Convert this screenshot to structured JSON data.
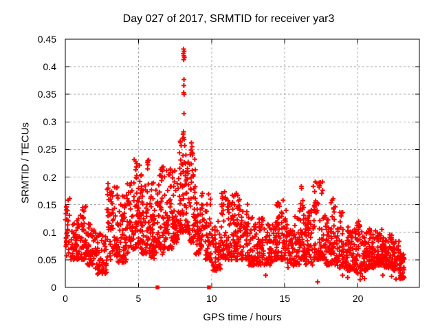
{
  "chart_data": {
    "type": "scatter",
    "title": "Day 027 of 2017, SRMTID for receiver yar3",
    "xlabel": "GPS time / hours",
    "ylabel": "SRMTID / TECUs",
    "xlim": [
      0,
      24.2
    ],
    "ylim": [
      0,
      0.45
    ],
    "xticks": [
      0,
      5,
      10,
      15,
      20
    ],
    "xtick_labels": [
      "0",
      "5",
      "10",
      "15",
      "20"
    ],
    "yticks": [
      0,
      0.05,
      0.1,
      0.15,
      0.2,
      0.25,
      0.3,
      0.35,
      0.4,
      0.45
    ],
    "ytick_labels": [
      "0",
      "0.05",
      "0.1",
      "0.15",
      "0.2",
      "0.25",
      "0.3",
      "0.35",
      "0.4",
      "0.45"
    ],
    "grid": true,
    "legend": "none",
    "marker": {
      "symbol": "+",
      "color": "#ff0000",
      "size": 7,
      "stroke_width": 2
    },
    "zero_markers": {
      "symbol": "filled-square",
      "color": "#ff0000",
      "size": 5.5,
      "points": [
        [
          6.3,
          0
        ],
        [
          9.82,
          0
        ]
      ]
    },
    "spike_points": [
      [
        8.08,
        0.432
      ],
      [
        8.12,
        0.428
      ],
      [
        8.06,
        0.424
      ],
      [
        8.1,
        0.42
      ],
      [
        8.14,
        0.417
      ],
      [
        8.09,
        0.413
      ],
      [
        8.11,
        0.377
      ],
      [
        8.1,
        0.366
      ],
      [
        8.09,
        0.353
      ],
      [
        8.12,
        0.35
      ],
      [
        8.11,
        0.315
      ],
      [
        8.08,
        0.282
      ],
      [
        8.12,
        0.268
      ],
      [
        8.05,
        0.278
      ],
      [
        8.02,
        0.27
      ],
      [
        8.62,
        0.262
      ],
      [
        8.66,
        0.255
      ],
      [
        8.59,
        0.249
      ],
      [
        8.64,
        0.244
      ],
      [
        8.7,
        0.24
      ]
    ],
    "low_points": [
      [
        2.2,
        0.024
      ],
      [
        13.7,
        0.022
      ],
      [
        17.25,
        0.01
      ],
      [
        18.95,
        0.022
      ],
      [
        19.3,
        0.018
      ],
      [
        20.15,
        0.014
      ],
      [
        20.3,
        0.02
      ],
      [
        20.45,
        0.016
      ],
      [
        21.7,
        0.022
      ],
      [
        22.3,
        0.02
      ],
      [
        22.6,
        0.015
      ],
      [
        22.9,
        0.018
      ],
      [
        23.05,
        0.026
      ],
      [
        23.15,
        0.032
      ]
    ],
    "envelope": [
      [
        0.0,
        0.35,
        0.055,
        0.165,
        30,
        0.85
      ],
      [
        0.35,
        1.0,
        0.05,
        0.135,
        55,
        1.6
      ],
      [
        1.0,
        1.45,
        0.05,
        0.148,
        40,
        1.4
      ],
      [
        1.45,
        2.05,
        0.04,
        0.115,
        50,
        1.5
      ],
      [
        2.05,
        2.85,
        0.025,
        0.1,
        60,
        1.4
      ],
      [
        2.85,
        3.6,
        0.05,
        0.193,
        70,
        1.1
      ],
      [
        3.6,
        4.2,
        0.045,
        0.175,
        55,
        1.5
      ],
      [
        4.2,
        4.7,
        0.06,
        0.19,
        45,
        1.3
      ],
      [
        4.7,
        5.2,
        0.07,
        0.238,
        55,
        1.4
      ],
      [
        5.2,
        5.55,
        0.06,
        0.185,
        35,
        1.4
      ],
      [
        5.55,
        5.85,
        0.06,
        0.232,
        35,
        1.4
      ],
      [
        5.85,
        6.2,
        0.05,
        0.19,
        38,
        1.4
      ],
      [
        6.2,
        6.7,
        0.06,
        0.22,
        50,
        1.5
      ],
      [
        6.7,
        7.3,
        0.07,
        0.22,
        55,
        1.5
      ],
      [
        7.3,
        7.8,
        0.08,
        0.215,
        50,
        1.5
      ],
      [
        7.8,
        8.2,
        0.1,
        0.28,
        45,
        1.4
      ],
      [
        8.2,
        8.45,
        0.1,
        0.245,
        35,
        1.2
      ],
      [
        8.45,
        8.9,
        0.08,
        0.245,
        45,
        1.5
      ],
      [
        8.9,
        9.5,
        0.06,
        0.175,
        55,
        1.5
      ],
      [
        9.5,
        10.0,
        0.05,
        0.17,
        45,
        1.6
      ],
      [
        10.0,
        10.6,
        0.03,
        0.125,
        45,
        1.4
      ],
      [
        10.6,
        11.3,
        0.05,
        0.175,
        65,
        1.5
      ],
      [
        11.3,
        12.0,
        0.05,
        0.172,
        65,
        1.4
      ],
      [
        12.0,
        12.5,
        0.05,
        0.155,
        45,
        1.5
      ],
      [
        12.5,
        13.2,
        0.04,
        0.128,
        55,
        1.4
      ],
      [
        13.2,
        13.7,
        0.04,
        0.138,
        40,
        1.3
      ],
      [
        13.7,
        14.4,
        0.04,
        0.122,
        55,
        1.4
      ],
      [
        14.4,
        15.2,
        0.05,
        0.158,
        70,
        1.4
      ],
      [
        15.2,
        15.65,
        0.035,
        0.105,
        35,
        1.4
      ],
      [
        15.65,
        16.0,
        0.04,
        0.132,
        30,
        1.3
      ],
      [
        16.0,
        16.4,
        0.05,
        0.185,
        40,
        1.5
      ],
      [
        16.4,
        16.9,
        0.04,
        0.142,
        45,
        1.4
      ],
      [
        16.9,
        17.75,
        0.05,
        0.192,
        75,
        1.5
      ],
      [
        17.75,
        18.1,
        0.04,
        0.132,
        30,
        1.4
      ],
      [
        18.1,
        18.5,
        0.04,
        0.166,
        38,
        1.5
      ],
      [
        18.5,
        19.3,
        0.035,
        0.136,
        65,
        1.5
      ],
      [
        19.3,
        19.8,
        0.03,
        0.112,
        42,
        1.4
      ],
      [
        19.8,
        20.2,
        0.025,
        0.122,
        38,
        1.4
      ],
      [
        20.2,
        20.7,
        0.03,
        0.102,
        45,
        1.4
      ],
      [
        20.7,
        21.2,
        0.035,
        0.116,
        48,
        1.4
      ],
      [
        21.2,
        21.8,
        0.04,
        0.106,
        55,
        1.4
      ],
      [
        21.8,
        22.4,
        0.035,
        0.096,
        55,
        1.4
      ],
      [
        22.4,
        22.85,
        0.03,
        0.086,
        45,
        1.3
      ],
      [
        22.85,
        23.2,
        0.015,
        0.062,
        35,
        1.2
      ]
    ],
    "colors": {
      "background": "#ffffff",
      "axis": "#000000",
      "grid": "#a8a8a8",
      "text": "#000000",
      "data": "#ff0000"
    }
  }
}
